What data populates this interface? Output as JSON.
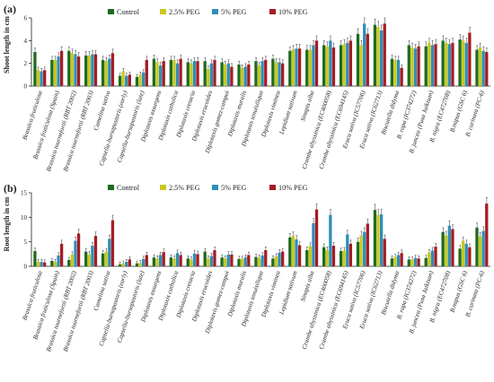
{
  "chart_data": [
    {
      "type": "bar",
      "panel": "(a)",
      "ylabel": "Shoot length in cm",
      "ylim": [
        0,
        6
      ],
      "yticks": [
        0,
        2,
        4,
        6
      ],
      "legend_placement": "top-center",
      "categories": [
        "Brassica fruticulosa",
        "Brassica fruticulosa (Spain)",
        "Brassica tournefortii (RBT 2002)",
        "Brassica tournefortii (RBT 2003)",
        "Camelina sativa",
        "Capsella-bursapastoris (early)",
        "Capsella-bursapastoris (late)",
        "Diplotaxis assurgens",
        "Diplotaxis catholica",
        "Diplotaxis cretacia",
        "Diplotaxis erucoides",
        "Diplotaxis gomez-campoi",
        "Diplotaxis muralis",
        "Diplotaxis tenuisiliqua",
        "Diplotaxis viminea",
        "Lepidium sativum",
        "Sinapis alba",
        "Crambe abyssinica (EC400058)",
        "Crambe abyssinica (EC694145)",
        "Eruca sativa (IC57706)",
        "Eruca sativa (IC62713)",
        "Biscutella didyma",
        "B. rapa (IC374272)",
        "B. juncea (Pusa Jaikisan)",
        "B. nigra (EC472708)",
        "B.napus (GSC 6)",
        "B. carinata (PC-6)"
      ],
      "series": [
        {
          "name": "Control",
          "color": "#1e6b1e",
          "values": [
            3.0,
            2.3,
            3.1,
            2.7,
            2.3,
            0.9,
            0.8,
            2.4,
            2.3,
            2.1,
            2.2,
            2.1,
            1.9,
            2.2,
            2.4,
            3.1,
            3.2,
            3.6,
            3.6,
            4.6,
            5.4,
            2.4,
            3.6,
            3.5,
            4.0,
            4.1,
            3.2
          ]
        },
        {
          "name": "2.5% PEG",
          "color": "#c8c81e",
          "values": [
            1.4,
            2.3,
            2.9,
            2.7,
            2.2,
            1.3,
            1.0,
            2.1,
            2.3,
            2.0,
            1.5,
            1.9,
            1.6,
            1.8,
            2.1,
            3.2,
            3.2,
            3.5,
            3.7,
            3.6,
            5.2,
            2.3,
            3.4,
            3.8,
            3.8,
            4.0,
            3.4
          ]
        },
        {
          "name": "5% PEG",
          "color": "#2e8fb8",
          "values": [
            1.3,
            2.6,
            2.8,
            2.8,
            2.4,
            0.9,
            1.2,
            1.8,
            2.0,
            2.2,
            2.0,
            2.0,
            1.7,
            2.2,
            2.1,
            3.3,
            3.6,
            4.0,
            3.8,
            5.5,
            4.9,
            2.3,
            3.3,
            3.6,
            3.7,
            3.8,
            3.1
          ]
        },
        {
          "name": "10% PEG",
          "color": "#a51c24",
          "values": [
            1.4,
            3.1,
            2.6,
            2.8,
            2.9,
            1.0,
            2.3,
            2.2,
            2.4,
            2.2,
            2.3,
            1.7,
            1.9,
            2.3,
            2.0,
            3.3,
            4.0,
            3.4,
            4.0,
            4.6,
            5.5,
            1.6,
            3.5,
            3.7,
            3.8,
            4.7,
            3.0
          ]
        }
      ]
    },
    {
      "type": "bar",
      "panel": "(b)",
      "ylabel": "Root length in cm",
      "ylim": [
        0,
        15
      ],
      "yticks": [
        0,
        5,
        10,
        15
      ],
      "legend_placement": "top-center",
      "categories": [
        "Brassica fruticulosa",
        "Brassica fruticulosa (Spain)",
        "Brassica tournefortii (RBT 2002)",
        "Brassica tournefortii (RBT 2003)",
        "Camelina sativa",
        "Capsella-bursapastoris (early)",
        "Capsella-bursapastoris (late)",
        "Diplotaxis assurgens",
        "Diplotaxis catholica",
        "Diplotaxis cretacia",
        "Diplotaxis erucoides",
        "Diplotaxis gomez-campoi",
        "Diplotaxis muralis",
        "Diplotaxis tenuisiliqua",
        "Diplotaxis viminea",
        "Lepidium sativum",
        "Sinapis alba",
        "Crambe abyssinica (EC400058)",
        "Crambe abyssinica (EC694145)",
        "Eruca sativa (IC57706)",
        "Eruca sativa (IC62713)",
        "Biscutella didyma",
        "B. rapa (IC374272)",
        "B. juncea (Pusa Jaikisan)",
        "B. nigra (EC472708)",
        "B.napus (GSC 6)",
        "B. carinata (PC-6)"
      ],
      "series": [
        {
          "name": "Control",
          "color": "#1e6b1e",
          "values": [
            3.1,
            1.1,
            1.3,
            3.0,
            2.6,
            0.4,
            0.6,
            1.8,
            1.8,
            1.6,
            3.0,
            1.8,
            1.5,
            1.9,
            1.6,
            5.9,
            3.3,
            3.9,
            3.1,
            5.0,
            11.5,
            1.6,
            1.4,
            1.7,
            7.0,
            3.6,
            7.9
          ]
        },
        {
          "name": "2.5% PEG",
          "color": "#c8c81e",
          "values": [
            0.9,
            0.9,
            2.4,
            2.4,
            3.0,
            0.6,
            0.7,
            1.6,
            1.6,
            1.4,
            1.6,
            1.6,
            1.5,
            1.7,
            2.0,
            6.2,
            4.1,
            3.3,
            3.2,
            6.3,
            10.5,
            1.9,
            1.4,
            2.8,
            6.3,
            5.2,
            6.1
          ]
        },
        {
          "name": "5% PEG",
          "color": "#2e8fb8",
          "values": [
            0.9,
            2.2,
            5.2,
            4.2,
            5.6,
            0.9,
            1.5,
            2.3,
            2.7,
            2.6,
            2.1,
            2.4,
            1.8,
            2.2,
            2.8,
            5.5,
            8.8,
            10.5,
            6.5,
            7.0,
            10.6,
            2.3,
            1.7,
            3.2,
            8.3,
            4.6,
            7.2
          ]
        },
        {
          "name": "10% PEG",
          "color": "#a51c24",
          "values": [
            0.8,
            4.6,
            6.7,
            6.2,
            9.4,
            1.4,
            2.3,
            2.9,
            2.3,
            2.5,
            3.3,
            2.4,
            2.3,
            3.3,
            3.0,
            4.3,
            11.6,
            4.2,
            4.6,
            8.7,
            5.6,
            2.7,
            1.6,
            4.0,
            7.6,
            3.9,
            12.8
          ]
        }
      ]
    }
  ]
}
